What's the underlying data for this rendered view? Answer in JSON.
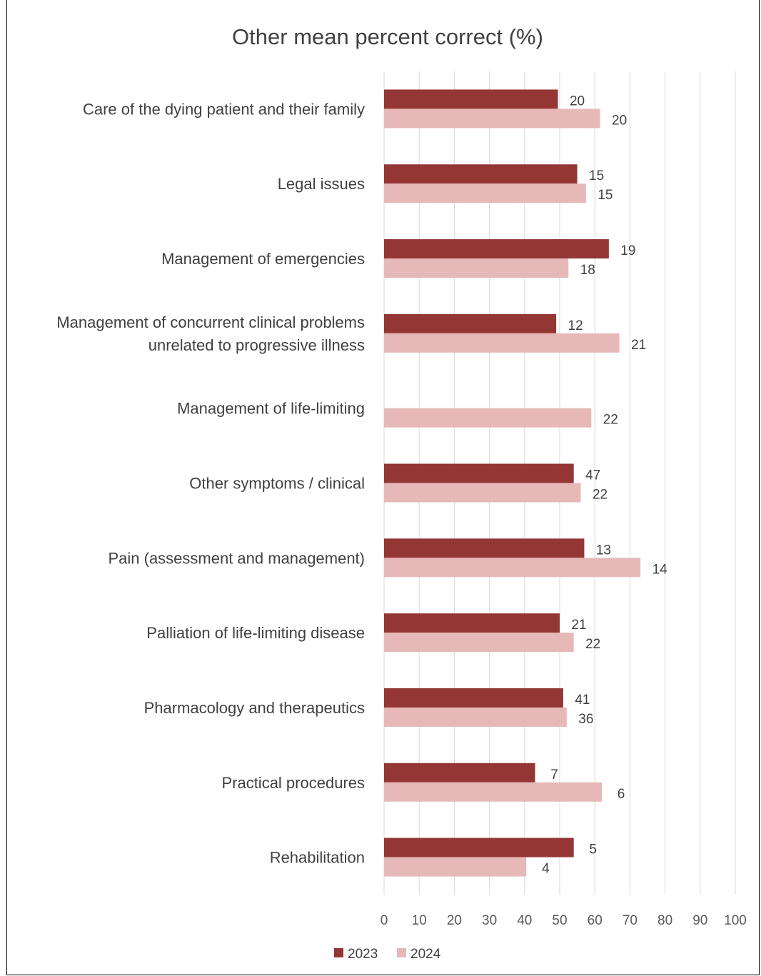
{
  "chart_data": {
    "type": "bar",
    "orientation": "horizontal",
    "title": "Other mean percent correct (%)",
    "xlabel": "",
    "ylabel": "",
    "xlim": [
      0,
      100
    ],
    "x_ticks": [
      "0",
      "10",
      "20",
      "30",
      "40",
      "50",
      "60",
      "70",
      "80",
      "90",
      "100"
    ],
    "grid": true,
    "legend_position": "bottom",
    "categories": [
      [
        "Care of the dying patient and their family"
      ],
      [
        "Legal issues"
      ],
      [
        "Management of emergencies"
      ],
      [
        "Management of concurrent clinical problems",
        "unrelated to progressive illness"
      ],
      [
        "Management of life-limiting"
      ],
      [
        "Other symptoms / clinical"
      ],
      [
        "Pain (assessment and management)"
      ],
      [
        "Palliation of life-limiting disease"
      ],
      [
        "Pharmacology and therapeutics"
      ],
      [
        "Practical procedures"
      ],
      [
        "Rehabilitation"
      ]
    ],
    "series": [
      {
        "name": "2023",
        "color": "#943634",
        "values": [
          49.5,
          55,
          64,
          49,
          null,
          54,
          57,
          50,
          51,
          43,
          54
        ],
        "labels": [
          "20",
          "15",
          "19",
          "12",
          "",
          "47",
          "13",
          "21",
          "41",
          "7",
          "5"
        ]
      },
      {
        "name": "2024",
        "color": "#E6B9B8",
        "values": [
          61.5,
          57.5,
          52.5,
          67,
          59,
          56,
          73,
          54,
          52,
          62,
          40.5
        ],
        "labels": [
          "20",
          "15",
          "18",
          "21",
          "22",
          "22",
          "14",
          "22",
          "36",
          "6",
          "4"
        ]
      }
    ]
  }
}
